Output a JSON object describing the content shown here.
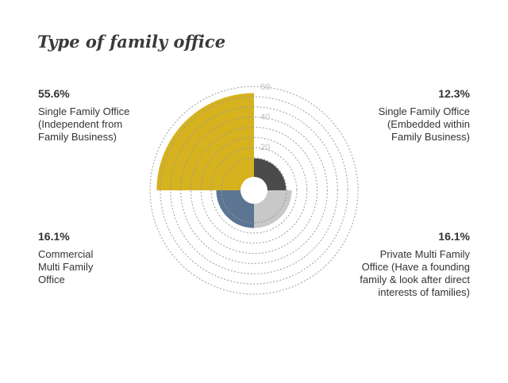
{
  "title": "Type of family office",
  "colors": {
    "gold": "#d6b21e",
    "dark": "#4b4b4b",
    "light": "#c8c8c8",
    "blue": "#5b7593",
    "grid": "#9a9a9a",
    "tick": "#bdbdbd"
  },
  "labels": {
    "top_left": {
      "pct": "55.6%",
      "lines": [
        "Single Family Office",
        "(Independent from",
        "Family Business)"
      ]
    },
    "top_right": {
      "pct": "12.3%",
      "lines": [
        "Single Family Office",
        "(Embedded within",
        "Family Business)"
      ]
    },
    "bottom_left": {
      "pct": "16.1%",
      "lines": [
        "Commercial",
        "Multi Family",
        "Office"
      ]
    },
    "bottom_right": {
      "pct": "16.1%",
      "lines": [
        "Private Multi Family",
        "Office (Have a founding",
        "family & look after direct",
        "interests of families)"
      ]
    }
  },
  "chart_data": {
    "type": "polar-area",
    "title": "Type of family office",
    "r_range": [
      0,
      60
    ],
    "r_ticks": [
      "60",
      "40",
      "20"
    ],
    "grid": true,
    "segments": [
      {
        "name": "Single Family Office (Embedded within Family Business)",
        "value": 12.3,
        "quadrant": "top-right",
        "color_key": "dark"
      },
      {
        "name": "Private Multi Family Office (Have a founding family & look after direct interests of families)",
        "value": 16.1,
        "quadrant": "bottom-right",
        "color_key": "light"
      },
      {
        "name": "Commercial Multi Family Office",
        "value": 16.1,
        "quadrant": "bottom-left",
        "color_key": "blue"
      },
      {
        "name": "Single Family Office (Independent from Family Business)",
        "value": 55.6,
        "quadrant": "top-left",
        "color_key": "gold"
      }
    ]
  }
}
